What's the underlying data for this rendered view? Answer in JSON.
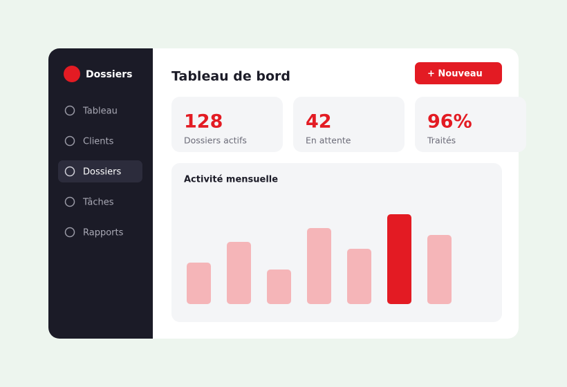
{
  "sidebar": {
    "brand": "Dossiers",
    "nav": [
      "Tableau",
      "Clients",
      "Dossiers",
      "Tâches",
      "Rapports"
    ],
    "active": 2
  },
  "header": {
    "title": "Tableau de bord",
    "button": "+ Nouveau"
  },
  "stats": [
    {
      "value": "128",
      "label": "Dossiers actifs"
    },
    {
      "value": "42",
      "label": "En attente"
    },
    {
      "value": "96%",
      "label": "Traités"
    }
  ],
  "chart_data": {
    "type": "bar",
    "title": "Activité mensuelle",
    "values": [
      6,
      9,
      5,
      11,
      8,
      13,
      10
    ],
    "color": "#f5b5b8",
    "highlight": 5,
    "highlight_color": "#e31b23"
  }
}
